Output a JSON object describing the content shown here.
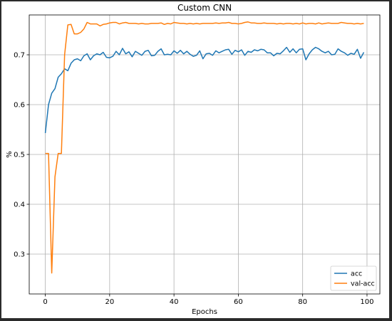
{
  "chart_data": {
    "type": "line",
    "title": "Custom CNN",
    "xlabel": "Epochs",
    "ylabel": "%",
    "xlim": [
      -5,
      104
    ],
    "ylim": [
      0.22,
      0.78
    ],
    "xticks": [
      0,
      20,
      40,
      60,
      80,
      100
    ],
    "yticks": [
      0.3,
      0.4,
      0.5,
      0.6,
      0.7
    ],
    "grid": true,
    "legend_position": "bottom-right",
    "series": [
      {
        "name": "acc",
        "color": "#1f77b4",
        "values": [
          0.543,
          0.6,
          0.623,
          0.632,
          0.655,
          0.662,
          0.672,
          0.668,
          0.683,
          0.69,
          0.692,
          0.688,
          0.698,
          0.702,
          0.69,
          0.698,
          0.702,
          0.7,
          0.705,
          0.695,
          0.694,
          0.697,
          0.707,
          0.7,
          0.713,
          0.702,
          0.706,
          0.696,
          0.707,
          0.703,
          0.699,
          0.707,
          0.709,
          0.698,
          0.699,
          0.707,
          0.712,
          0.7,
          0.701,
          0.7,
          0.708,
          0.703,
          0.709,
          0.702,
          0.707,
          0.701,
          0.697,
          0.699,
          0.708,
          0.692,
          0.702,
          0.703,
          0.699,
          0.708,
          0.704,
          0.707,
          0.71,
          0.711,
          0.701,
          0.709,
          0.706,
          0.71,
          0.699,
          0.707,
          0.705,
          0.71,
          0.708,
          0.711,
          0.71,
          0.704,
          0.704,
          0.698,
          0.703,
          0.702,
          0.708,
          0.715,
          0.705,
          0.712,
          0.704,
          0.711,
          0.712,
          0.69,
          0.702,
          0.71,
          0.715,
          0.712,
          0.707,
          0.704,
          0.707,
          0.7,
          0.701,
          0.712,
          0.707,
          0.704,
          0.699,
          0.703,
          0.701,
          0.711,
          0.693,
          0.705
        ]
      },
      {
        "name": "val-acc",
        "color": "#ff7f0e",
        "values": [
          0.502,
          0.502,
          0.262,
          0.455,
          0.502,
          0.502,
          0.7,
          0.76,
          0.761,
          0.742,
          0.742,
          0.745,
          0.752,
          0.765,
          0.762,
          0.762,
          0.762,
          0.758,
          0.761,
          0.762,
          0.764,
          0.765,
          0.765,
          0.762,
          0.764,
          0.765,
          0.763,
          0.763,
          0.763,
          0.762,
          0.763,
          0.762,
          0.762,
          0.763,
          0.763,
          0.763,
          0.764,
          0.761,
          0.763,
          0.762,
          0.765,
          0.764,
          0.763,
          0.763,
          0.762,
          0.763,
          0.762,
          0.763,
          0.762,
          0.763,
          0.763,
          0.763,
          0.763,
          0.764,
          0.763,
          0.764,
          0.764,
          0.765,
          0.763,
          0.763,
          0.762,
          0.763,
          0.765,
          0.766,
          0.764,
          0.764,
          0.763,
          0.763,
          0.764,
          0.763,
          0.763,
          0.763,
          0.762,
          0.763,
          0.762,
          0.763,
          0.763,
          0.762,
          0.763,
          0.762,
          0.764,
          0.762,
          0.763,
          0.763,
          0.762,
          0.764,
          0.762,
          0.763,
          0.764,
          0.763,
          0.763,
          0.763,
          0.765,
          0.764,
          0.763,
          0.763,
          0.762,
          0.763,
          0.762,
          0.763
        ]
      }
    ]
  }
}
